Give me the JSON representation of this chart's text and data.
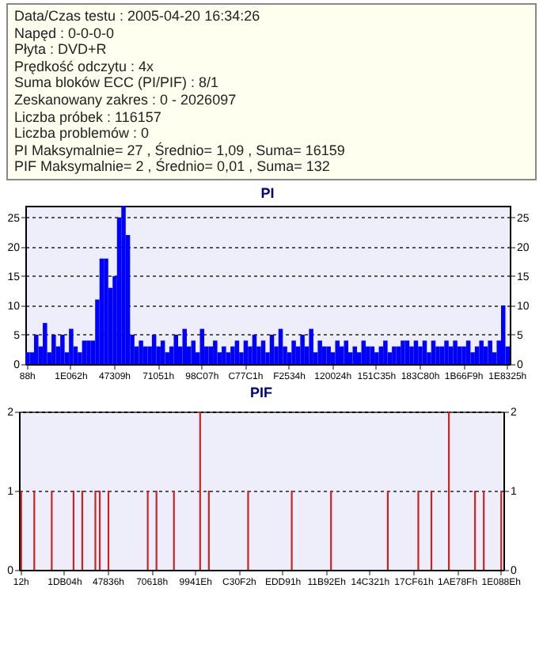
{
  "chart_data": [
    {
      "type": "bar",
      "title": "PI",
      "annotations": [
        "Data/Czas testu : 2005-04-20 16:34:26",
        "Napęd : 0-0-0-0",
        "Płyta : DVD+R",
        "Prędkość odczytu : 4x",
        "Suma bloków ECC (PI/PIF) : 8/1",
        "Zeskanowany zakres : 0 - 2026097",
        "Liczba próbek : 116157",
        "Liczba problemów : 0",
        "PI Maksymalnie= 27 , Średnio= 1,09 , Suma= 16159",
        "PIF Maksymalnie= 2 , Średnio= 0,01 , Suma= 132"
      ],
      "categories": [
        "88h",
        null,
        null,
        null,
        null,
        null,
        null,
        null,
        null,
        null,
        "1E062h",
        null,
        null,
        null,
        null,
        null,
        null,
        null,
        null,
        null,
        "47309h",
        null,
        null,
        null,
        null,
        null,
        null,
        null,
        null,
        null,
        "71051h",
        null,
        null,
        null,
        null,
        null,
        null,
        null,
        null,
        null,
        "98C07h",
        null,
        null,
        null,
        null,
        null,
        null,
        null,
        null,
        null,
        "C77C1h",
        null,
        null,
        null,
        null,
        null,
        null,
        null,
        null,
        null,
        "F2534h",
        null,
        null,
        null,
        null,
        null,
        null,
        null,
        null,
        null,
        "120024h",
        null,
        null,
        null,
        null,
        null,
        null,
        null,
        null,
        null,
        "151C35h",
        null,
        null,
        null,
        null,
        null,
        null,
        null,
        null,
        null,
        "183C80h",
        null,
        null,
        null,
        null,
        null,
        null,
        null,
        null,
        null,
        "1B66F9h",
        null,
        null,
        null,
        null,
        null,
        null,
        null,
        null,
        null,
        "1E8325h"
      ],
      "series": [
        {
          "color": "#0000ff",
          "values": [
            2,
            2,
            5,
            3,
            7,
            2,
            5,
            3,
            5,
            2,
            6,
            3,
            2,
            4,
            4,
            4,
            11,
            18,
            18,
            13,
            15,
            25,
            27,
            22,
            5,
            3,
            4,
            3,
            3,
            5,
            3,
            4,
            2,
            3,
            5,
            3,
            6,
            3,
            4,
            2,
            6,
            3,
            3,
            4,
            2,
            3,
            2,
            3,
            4,
            2,
            4,
            3,
            5,
            3,
            4,
            2,
            5,
            3,
            6,
            3,
            2,
            4,
            3,
            5,
            3,
            6,
            2,
            4,
            3,
            3,
            2,
            4,
            3,
            4,
            2,
            3,
            2,
            4,
            3,
            3,
            2,
            3,
            4,
            2,
            3,
            3,
            4,
            4,
            3,
            4,
            3,
            4,
            2,
            4,
            3,
            3,
            4,
            3,
            4,
            3,
            3,
            4,
            2,
            3,
            4,
            3,
            4,
            2,
            4,
            10,
            3
          ]
        }
      ],
      "ylim": [
        0,
        27
      ],
      "yticks": [
        0,
        5,
        10,
        15,
        20,
        25
      ],
      "y2lim": [
        0,
        27
      ],
      "y2ticks": [
        0,
        5,
        10,
        15,
        20,
        25
      ],
      "grid": "y"
    },
    {
      "type": "bar",
      "title": "PIF",
      "categories": [
        "12h",
        null,
        null,
        null,
        null,
        null,
        null,
        null,
        null,
        null,
        "1DB04h",
        null,
        null,
        null,
        null,
        null,
        null,
        null,
        null,
        null,
        "47836h",
        null,
        null,
        null,
        null,
        null,
        null,
        null,
        null,
        null,
        "70618h",
        null,
        null,
        null,
        null,
        null,
        null,
        null,
        null,
        null,
        "9941Eh",
        null,
        null,
        null,
        null,
        null,
        null,
        null,
        null,
        null,
        "C30F2h",
        null,
        null,
        null,
        null,
        null,
        null,
        null,
        null,
        null,
        "EDD91h",
        null,
        null,
        null,
        null,
        null,
        null,
        null,
        null,
        null,
        "11B92Eh",
        null,
        null,
        null,
        null,
        null,
        null,
        null,
        null,
        null,
        "14C321h",
        null,
        null,
        null,
        null,
        null,
        null,
        null,
        null,
        null,
        "17CF61h",
        null,
        null,
        null,
        null,
        null,
        null,
        null,
        null,
        null,
        "1AE78Fh",
        null,
        null,
        null,
        null,
        null,
        null,
        null,
        null,
        null,
        "1E088Eh"
      ],
      "series": [
        {
          "color": "#cc2222",
          "values": [
            1,
            0,
            0,
            1,
            0,
            0,
            0,
            1,
            0,
            0,
            0,
            0,
            1,
            0,
            1,
            0,
            0,
            1,
            1,
            0,
            1,
            0,
            0,
            0,
            0,
            0,
            0,
            0,
            0,
            1,
            0,
            1,
            0,
            0,
            0,
            1,
            0,
            0,
            0,
            0,
            0,
            2,
            0,
            1,
            0,
            0,
            0,
            0,
            0,
            0,
            0,
            0,
            1,
            0,
            0,
            0,
            0,
            0,
            0,
            0,
            0,
            0,
            1,
            0,
            0,
            0,
            0,
            0,
            0,
            0,
            0,
            1,
            0,
            0,
            0,
            0,
            0,
            0,
            0,
            0,
            0,
            0,
            0,
            0,
            1,
            0,
            0,
            0,
            0,
            0,
            0,
            1,
            0,
            0,
            1,
            0,
            0,
            0,
            2,
            0,
            0,
            0,
            0,
            0,
            1,
            0,
            1,
            0,
            0,
            0,
            1
          ]
        }
      ],
      "ylim": [
        0,
        2
      ],
      "yticks": [
        0,
        1,
        2
      ],
      "y2lim": [
        0,
        2
      ],
      "y2ticks": [
        0,
        1,
        2
      ],
      "grid": "y"
    }
  ]
}
